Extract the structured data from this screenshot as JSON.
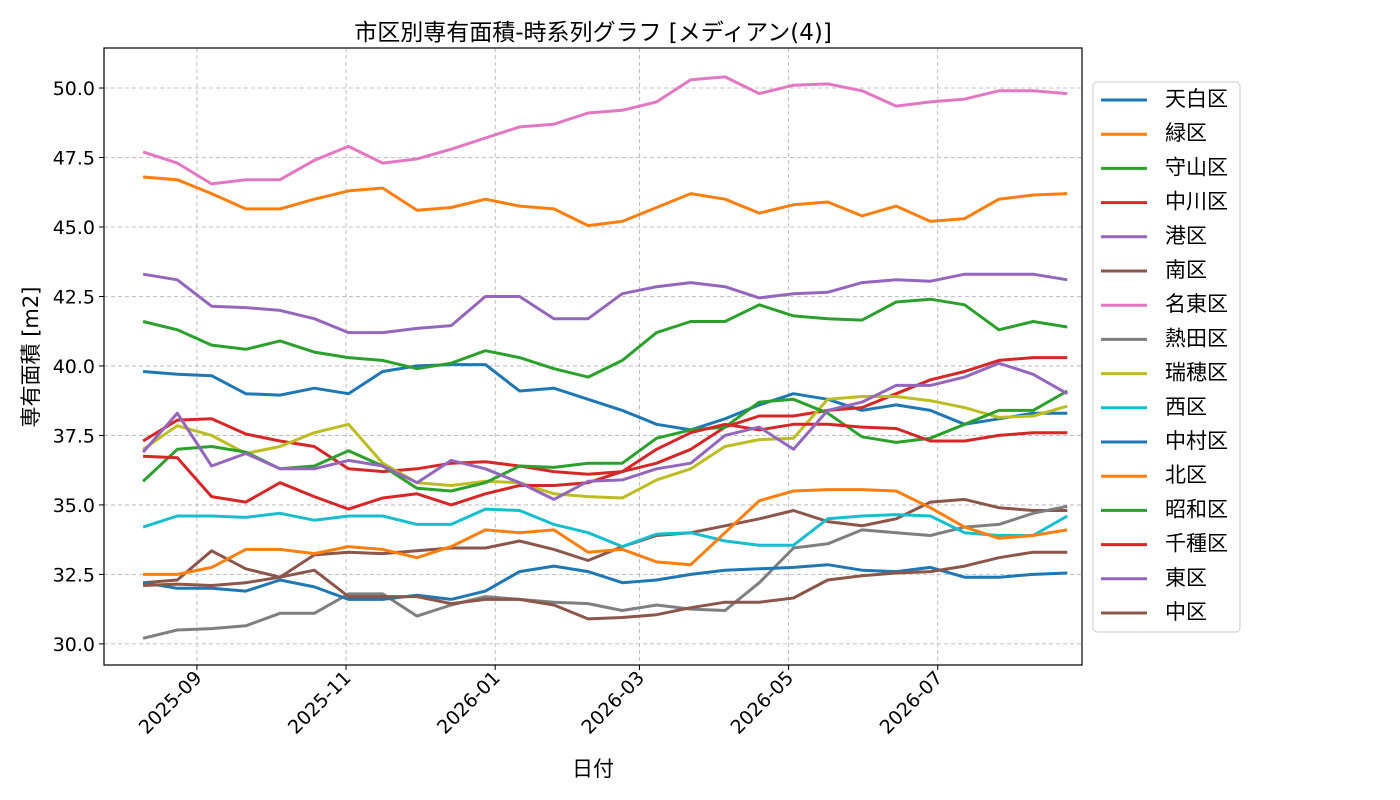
{
  "chart_data": {
    "type": "line",
    "title": "市区別専有面積-時系列グラフ [メディアン(4)]",
    "x_label": "日付",
    "y_label": "専有面積 [m2]",
    "x": [
      "2025-08-10",
      "2025-08-24",
      "2025-09-07",
      "2025-09-21",
      "2025-10-05",
      "2025-10-19",
      "2025-11-02",
      "2025-11-16",
      "2025-11-30",
      "2025-12-14",
      "2025-12-28",
      "2026-01-11",
      "2026-01-25",
      "2026-02-08",
      "2026-02-22",
      "2026-03-08",
      "2026-03-22",
      "2026-04-05",
      "2026-04-19",
      "2026-05-03",
      "2026-05-17",
      "2026-05-31",
      "2026-06-14",
      "2026-06-28",
      "2026-07-12",
      "2026-07-26",
      "2026-08-09",
      "2026-08-23"
    ],
    "xlim": [
      "2025-07-25",
      "2026-08-29"
    ],
    "xticks": [
      "2025-09",
      "2025-11",
      "2026-01",
      "2026-03",
      "2026-05",
      "2026-07"
    ],
    "ylim": [
      29.24,
      51.44
    ],
    "yticks": [
      {
        "value": 30,
        "label": "30.0"
      },
      {
        "value": 32.5,
        "label": "32.5"
      },
      {
        "value": 35,
        "label": "35.0"
      },
      {
        "value": 37.5,
        "label": "37.5"
      },
      {
        "value": 40,
        "label": "40.0"
      },
      {
        "value": 42.5,
        "label": "42.5"
      },
      {
        "value": 45,
        "label": "45.0"
      },
      {
        "value": 47.5,
        "label": "47.5"
      },
      {
        "value": 50,
        "label": "50.0"
      }
    ],
    "grid": true,
    "legend": "right",
    "series": [
      {
        "name": "天白区",
        "color": "#1f77b4",
        "values": [
          39.8,
          39.7,
          39.65,
          39.0,
          38.95,
          39.2,
          39.0,
          39.8,
          40.0,
          40.05,
          40.05,
          39.1,
          39.2,
          38.8,
          38.4,
          37.9,
          37.7,
          38.1,
          38.6,
          39.0,
          38.8,
          38.4,
          38.6,
          38.4,
          37.9,
          38.1,
          38.3,
          38.3
        ]
      },
      {
        "name": "緑区",
        "color": "#ff7f0e",
        "values": [
          46.8,
          46.7,
          46.2,
          45.65,
          45.65,
          46.0,
          46.3,
          46.4,
          45.6,
          45.7,
          46.0,
          45.75,
          45.65,
          45.05,
          45.2,
          45.7,
          46.2,
          46.0,
          45.5,
          45.8,
          45.9,
          45.4,
          45.75,
          45.2,
          45.3,
          46.0,
          46.15,
          46.2
        ]
      },
      {
        "name": "守山区",
        "color": "#2ca02c",
        "values": [
          41.6,
          41.3,
          40.75,
          40.6,
          40.9,
          40.5,
          40.3,
          40.2,
          39.9,
          40.1,
          40.55,
          40.3,
          39.9,
          39.6,
          40.2,
          41.2,
          41.6,
          41.6,
          42.2,
          41.8,
          41.7,
          41.65,
          42.3,
          42.4,
          42.2,
          41.3,
          41.6,
          41.4
        ]
      },
      {
        "name": "中川区",
        "color": "#d62728",
        "values": [
          37.3,
          38.05,
          38.1,
          37.55,
          37.3,
          37.1,
          36.3,
          36.2,
          36.3,
          36.5,
          36.55,
          36.4,
          36.2,
          36.1,
          36.2,
          36.5,
          37.0,
          37.8,
          38.2,
          38.2,
          38.4,
          38.5,
          39.0,
          39.5,
          39.8,
          40.2,
          40.3,
          40.3
        ]
      },
      {
        "name": "港区",
        "color": "#9467bd",
        "values": [
          43.3,
          43.1,
          42.15,
          42.1,
          42.0,
          41.7,
          41.2,
          41.2,
          41.35,
          41.45,
          42.5,
          42.5,
          41.7,
          41.7,
          42.6,
          42.85,
          43.0,
          42.85,
          42.45,
          42.6,
          42.65,
          43.0,
          43.1,
          43.05,
          43.3,
          43.3,
          43.3,
          43.1
        ]
      },
      {
        "name": "南区",
        "color": "#8c564b",
        "values": [
          32.2,
          32.3,
          33.35,
          32.7,
          32.4,
          33.2,
          33.3,
          33.25,
          33.35,
          33.45,
          33.45,
          33.7,
          33.4,
          33.0,
          33.5,
          33.9,
          34.0,
          34.25,
          34.5,
          34.8,
          34.4,
          34.25,
          34.5,
          35.1,
          35.2,
          34.9,
          34.8,
          34.8
        ]
      },
      {
        "name": "名東区",
        "color": "#e377c2",
        "values": [
          47.7,
          47.3,
          46.55,
          46.7,
          46.7,
          47.4,
          47.9,
          47.3,
          47.45,
          47.8,
          48.2,
          48.6,
          48.7,
          49.1,
          49.2,
          49.5,
          50.3,
          50.4,
          49.8,
          50.1,
          50.15,
          49.9,
          49.35,
          49.5,
          49.6,
          49.9,
          49.9,
          49.8
        ]
      },
      {
        "name": "熱田区",
        "color": "#7f7f7f",
        "values": [
          30.2,
          30.5,
          30.55,
          30.65,
          31.1,
          31.1,
          31.8,
          31.8,
          31.0,
          31.4,
          31.7,
          31.6,
          31.5,
          31.45,
          31.2,
          31.4,
          31.25,
          31.2,
          32.2,
          33.45,
          33.6,
          34.1,
          34.0,
          33.9,
          34.2,
          34.3,
          34.7,
          34.95
        ]
      },
      {
        "name": "瑞穂区",
        "color": "#bcbd22",
        "values": [
          37.0,
          37.85,
          37.5,
          36.85,
          37.1,
          37.6,
          37.9,
          36.5,
          35.8,
          35.7,
          35.85,
          35.8,
          35.4,
          35.3,
          35.25,
          35.9,
          36.3,
          37.1,
          37.35,
          37.4,
          38.8,
          38.9,
          38.9,
          38.75,
          38.5,
          38.15,
          38.2,
          38.55
        ]
      },
      {
        "name": "西区",
        "color": "#17becf",
        "values": [
          34.2,
          34.6,
          34.6,
          34.55,
          34.7,
          34.45,
          34.6,
          34.6,
          34.3,
          34.3,
          34.85,
          34.8,
          34.3,
          34.0,
          33.5,
          33.95,
          34.0,
          33.7,
          33.55,
          33.55,
          34.5,
          34.6,
          34.65,
          34.6,
          34.0,
          33.9,
          33.9,
          34.6
        ]
      },
      {
        "name": "中村区",
        "color": "#1f77b4",
        "values": [
          32.2,
          32.0,
          32.0,
          31.9,
          32.3,
          32.05,
          31.6,
          31.6,
          31.75,
          31.6,
          31.9,
          32.6,
          32.8,
          32.6,
          32.2,
          32.3,
          32.5,
          32.65,
          32.7,
          32.75,
          32.85,
          32.65,
          32.6,
          32.75,
          32.4,
          32.4,
          32.5,
          32.55
        ]
      },
      {
        "name": "北区",
        "color": "#ff7f0e",
        "values": [
          32.5,
          32.5,
          32.75,
          33.4,
          33.4,
          33.25,
          33.5,
          33.4,
          33.1,
          33.5,
          34.1,
          34.0,
          34.1,
          33.3,
          33.4,
          32.95,
          32.85,
          34.0,
          35.15,
          35.5,
          35.55,
          35.55,
          35.5,
          34.9,
          34.2,
          33.8,
          33.9,
          34.1
        ]
      },
      {
        "name": "昭和区",
        "color": "#2ca02c",
        "values": [
          35.85,
          37.0,
          37.1,
          36.9,
          36.3,
          36.4,
          36.95,
          36.4,
          35.6,
          35.5,
          35.8,
          36.4,
          36.35,
          36.5,
          36.5,
          37.4,
          37.7,
          37.8,
          38.7,
          38.8,
          38.3,
          37.45,
          37.25,
          37.4,
          37.9,
          38.4,
          38.4,
          39.1
        ]
      },
      {
        "name": "千種区",
        "color": "#d62728",
        "values": [
          36.75,
          36.7,
          35.3,
          35.1,
          35.8,
          35.3,
          34.85,
          35.25,
          35.4,
          35.0,
          35.4,
          35.7,
          35.7,
          35.8,
          36.2,
          37.0,
          37.6,
          37.9,
          37.7,
          37.9,
          37.9,
          37.8,
          37.75,
          37.3,
          37.3,
          37.5,
          37.6,
          37.6
        ]
      },
      {
        "name": "東区",
        "color": "#9467bd",
        "values": [
          36.9,
          38.3,
          36.4,
          36.85,
          36.3,
          36.3,
          36.6,
          36.4,
          35.8,
          36.6,
          36.3,
          35.8,
          35.2,
          35.85,
          35.9,
          36.3,
          36.5,
          37.5,
          37.8,
          37.0,
          38.4,
          38.7,
          39.3,
          39.3,
          39.6,
          40.1,
          39.7,
          39.0
        ]
      },
      {
        "name": "中区",
        "color": "#8c564b",
        "values": [
          32.1,
          32.15,
          32.1,
          32.2,
          32.4,
          32.65,
          31.7,
          31.7,
          31.7,
          31.45,
          31.6,
          31.6,
          31.4,
          30.9,
          30.95,
          31.05,
          31.3,
          31.5,
          31.5,
          31.65,
          32.3,
          32.45,
          32.55,
          32.6,
          32.8,
          33.1,
          33.3,
          33.3
        ]
      }
    ]
  }
}
